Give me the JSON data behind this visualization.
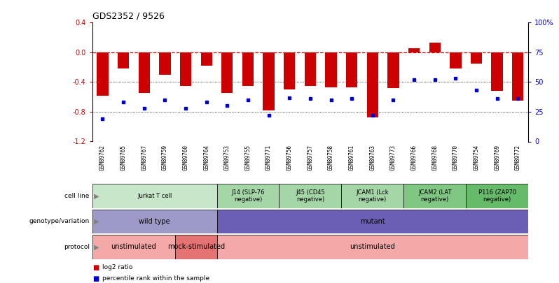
{
  "title": "GDS2352 / 9526",
  "samples": [
    "GSM89762",
    "GSM89765",
    "GSM89767",
    "GSM89759",
    "GSM89760",
    "GSM89764",
    "GSM89753",
    "GSM89755",
    "GSM89771",
    "GSM89756",
    "GSM89757",
    "GSM89758",
    "GSM89761",
    "GSM89763",
    "GSM89773",
    "GSM89766",
    "GSM89768",
    "GSM89770",
    "GSM89754",
    "GSM89769",
    "GSM89772"
  ],
  "log2_ratio": [
    -0.58,
    -0.22,
    -0.55,
    -0.3,
    -0.45,
    -0.18,
    -0.55,
    -0.45,
    -0.78,
    -0.5,
    -0.45,
    -0.47,
    -0.47,
    -0.88,
    -0.48,
    0.06,
    0.13,
    -0.22,
    -0.15,
    -0.52,
    -0.65
  ],
  "percentile": [
    19,
    33,
    28,
    35,
    28,
    33,
    30,
    35,
    22,
    37,
    36,
    35,
    36,
    22,
    35,
    52,
    52,
    53,
    43,
    36,
    36
  ],
  "ylim_left": [
    -1.2,
    0.4
  ],
  "ylim_right": [
    0,
    100
  ],
  "yticks_left": [
    -1.2,
    -0.8,
    -0.4,
    0.0,
    0.4
  ],
  "yticks_right": [
    0,
    25,
    50,
    75,
    100
  ],
  "bar_color": "#cc0000",
  "dot_color": "#0000cc",
  "dashed_line_color": "#cc0000",
  "xtick_bg_color": "#d9d9d9",
  "cell_line_groups": [
    {
      "label": "Jurkat T cell",
      "start": 0,
      "end": 6,
      "color": "#c8e6c9"
    },
    {
      "label": "J14 (SLP-76\nnegative)",
      "start": 6,
      "end": 9,
      "color": "#a5d6a7"
    },
    {
      "label": "J45 (CD45\nnegative)",
      "start": 9,
      "end": 12,
      "color": "#a5d6a7"
    },
    {
      "label": "JCAM1 (Lck\nnegative)",
      "start": 12,
      "end": 15,
      "color": "#a5d6a7"
    },
    {
      "label": "JCAM2 (LAT\nnegative)",
      "start": 15,
      "end": 18,
      "color": "#81c784"
    },
    {
      "label": "P116 (ZAP70\nnegative)",
      "start": 18,
      "end": 21,
      "color": "#66bb6a"
    }
  ],
  "genotype_groups": [
    {
      "label": "wild type",
      "start": 0,
      "end": 6,
      "color": "#9e9ac8"
    },
    {
      "label": "mutant",
      "start": 6,
      "end": 21,
      "color": "#6b5fb5"
    }
  ],
  "protocol_groups": [
    {
      "label": "unstimulated",
      "start": 0,
      "end": 4,
      "color": "#f4a9a8"
    },
    {
      "label": "mock-stimulated",
      "start": 4,
      "end": 6,
      "color": "#e57373"
    },
    {
      "label": "unstimulated",
      "start": 6,
      "end": 21,
      "color": "#f4a9a8"
    }
  ],
  "legend_items": [
    {
      "color": "#cc0000",
      "label": "log2 ratio"
    },
    {
      "color": "#0000cc",
      "label": "percentile rank within the sample"
    }
  ],
  "row_labels": [
    "cell line",
    "genotype/variation",
    "protocol"
  ],
  "background_color": "#ffffff"
}
